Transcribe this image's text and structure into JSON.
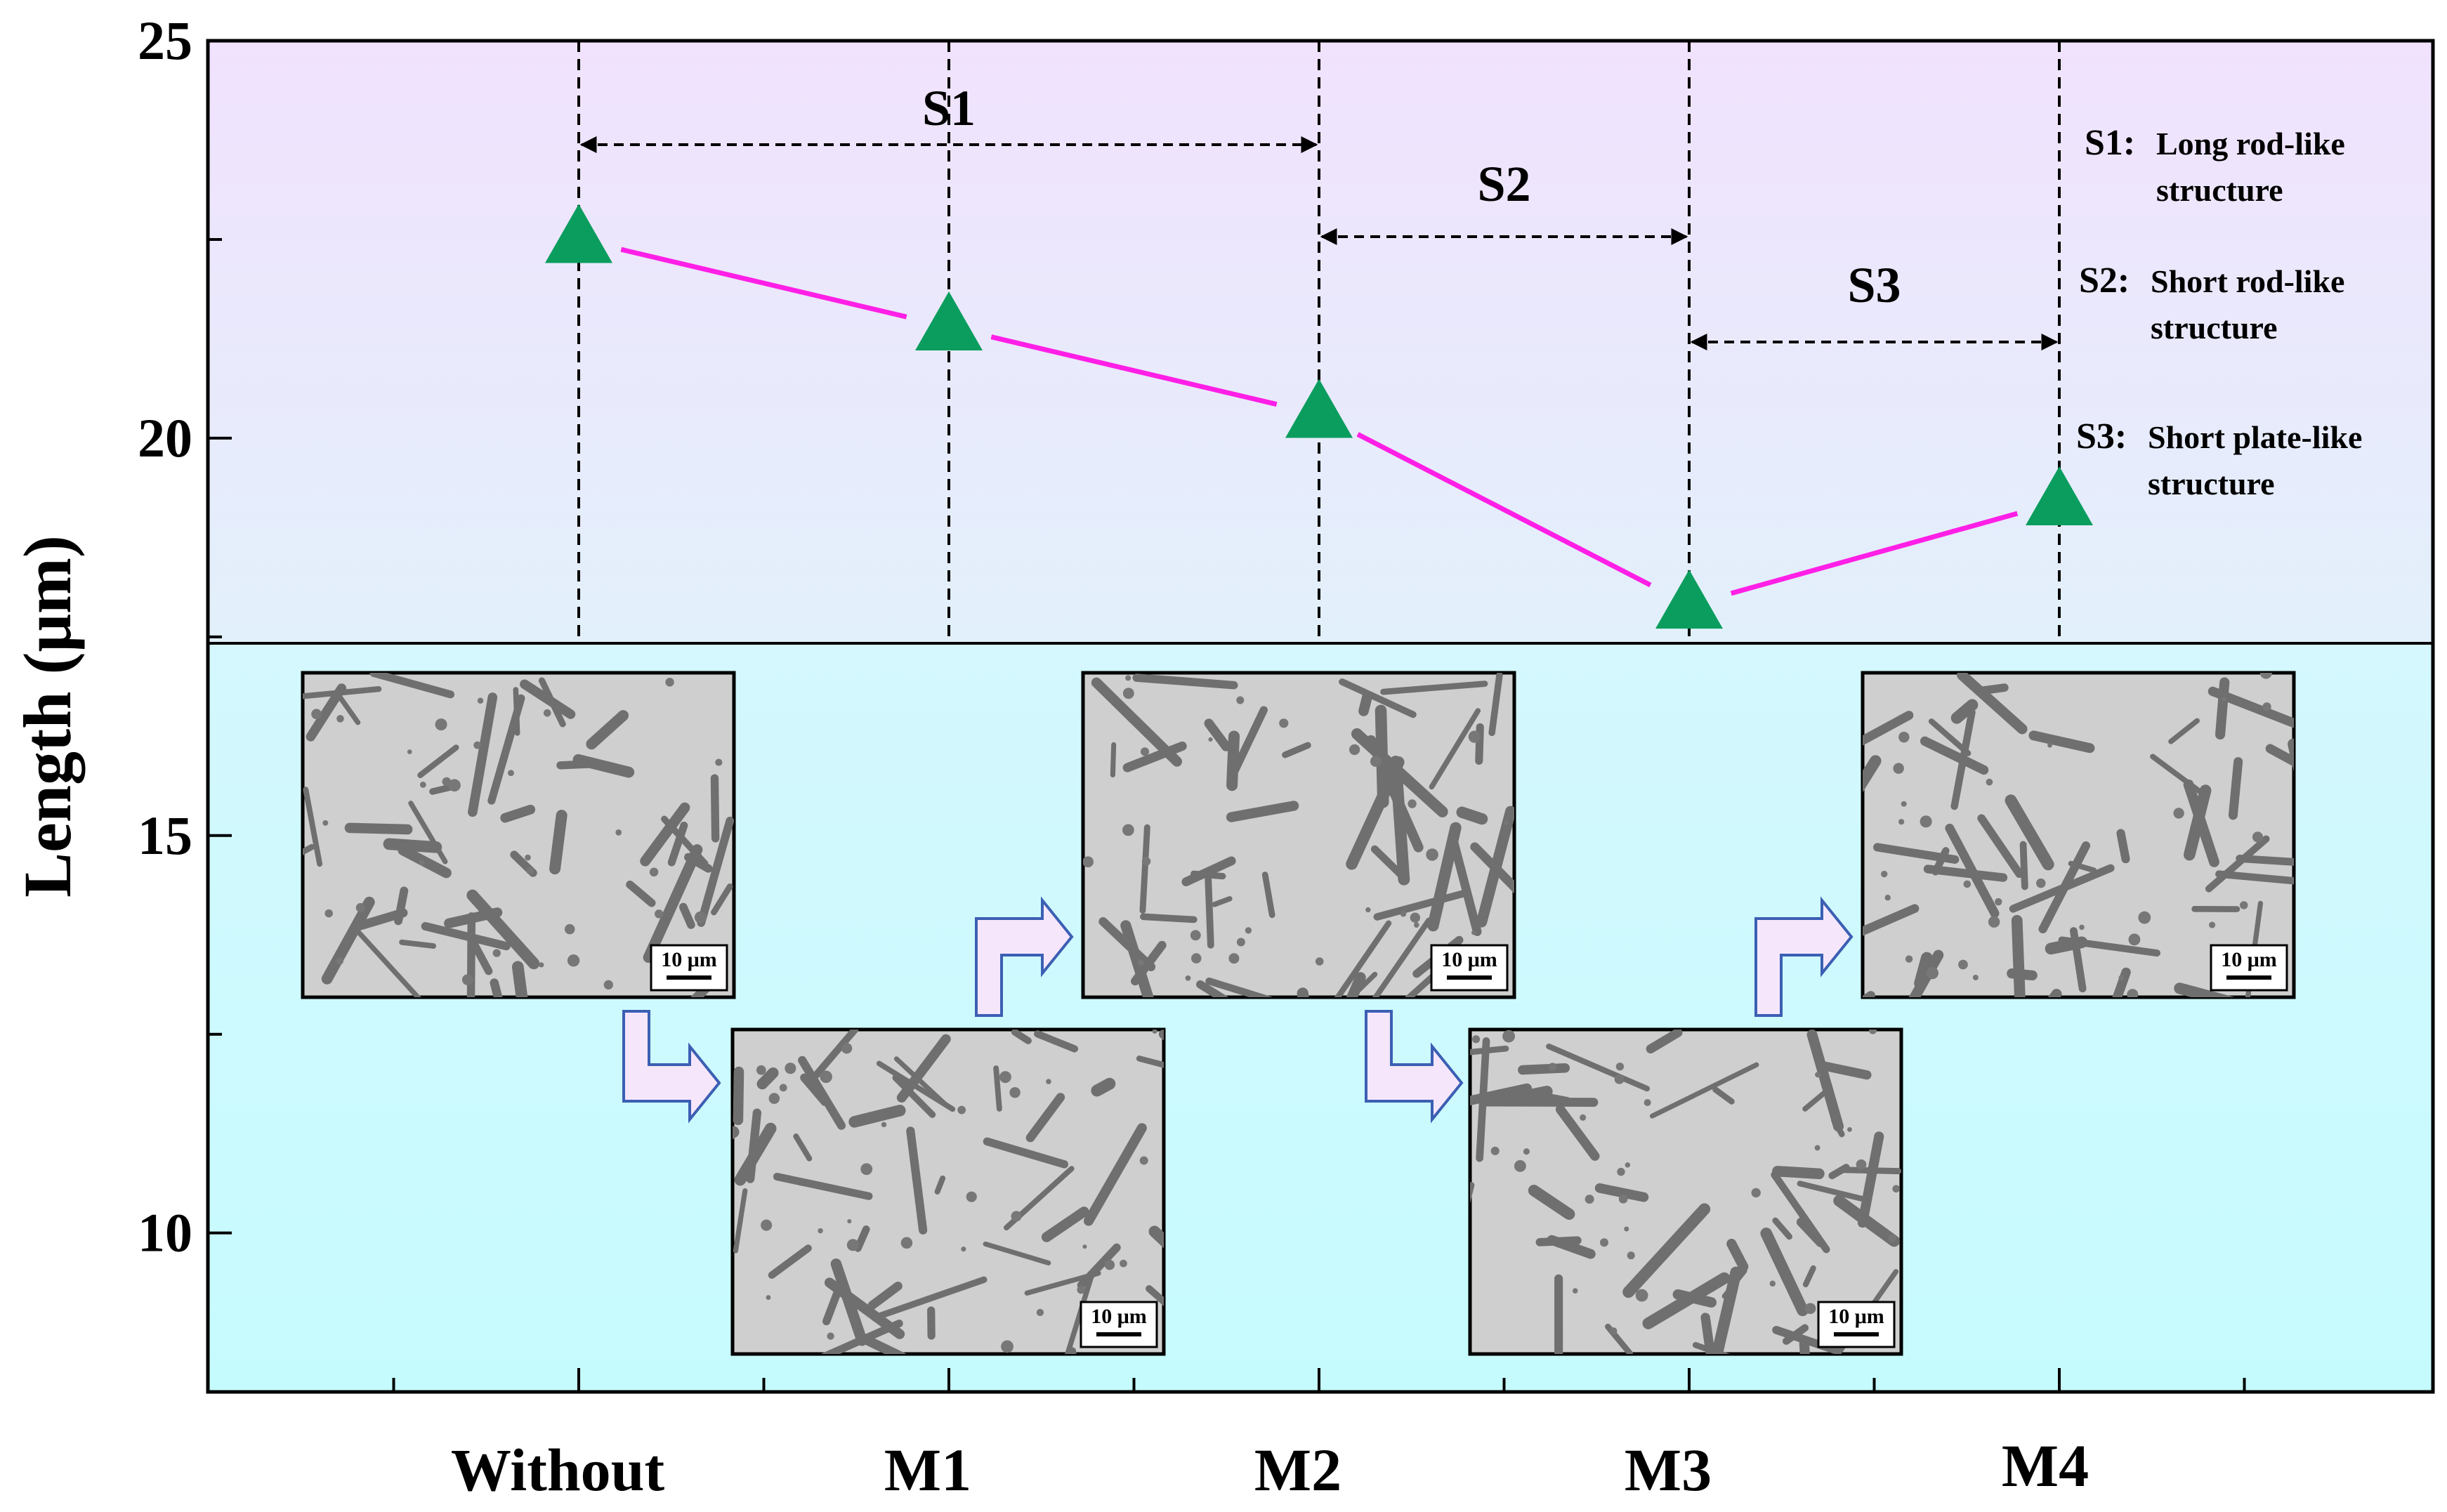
{
  "chart_data": {
    "type": "line",
    "categories": [
      "Without",
      "M1",
      "M2",
      "M3",
      "M4"
    ],
    "series": [
      {
        "values": [
          22.5,
          21.4,
          20.3,
          17.9,
          19.2
        ],
        "color": "#ff1fe6",
        "marker_color": "#0b9d5e"
      }
    ],
    "ylabel": "Length (μm)",
    "ylim": [
      8.0,
      25.0
    ],
    "yticks": [
      "10",
      "15",
      "20",
      "25"
    ],
    "grid": false,
    "regions": [
      {
        "label": "S1",
        "from": "Without",
        "to": "M2"
      },
      {
        "label": "S2",
        "from": "M2",
        "to": "M3"
      },
      {
        "label": "S3",
        "from": "M3",
        "to": "M4"
      }
    ],
    "legend": {
      "placement": "top-right",
      "entries": [
        {
          "key": "S1:",
          "line1": "Long rod-like",
          "line2": "structure"
        },
        {
          "key": "S2:",
          "line1": "Short rod-like",
          "line2": "structure"
        },
        {
          "key": "S3:",
          "line1": "Short plate-like",
          "line2": "structure"
        }
      ]
    },
    "inset_scale_bar_label": "10 μm",
    "background_colors": {
      "top": "#f1e2fd",
      "middle": "#e2f0fb",
      "bottom": "#c6fbfe"
    }
  }
}
